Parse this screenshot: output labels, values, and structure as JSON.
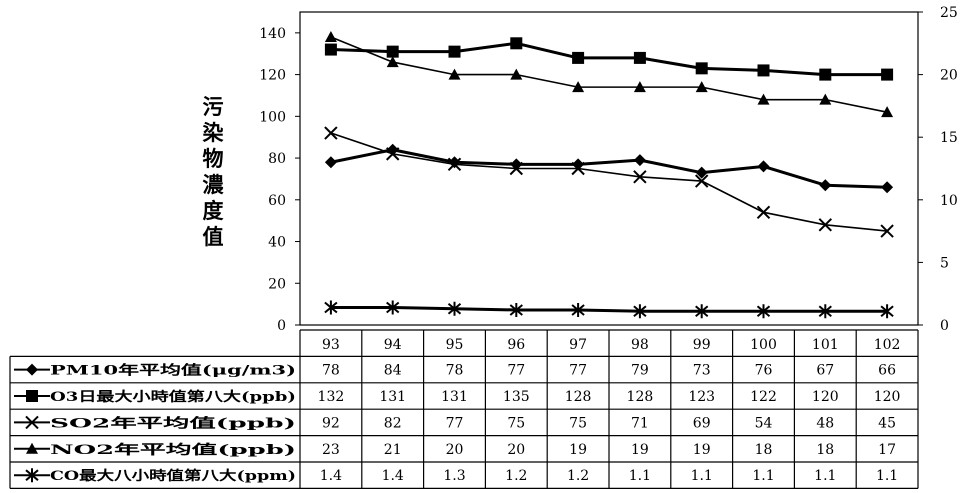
{
  "chart_data": {
    "type": "line",
    "ylabel": "污染物濃度值",
    "x": [
      "93",
      "94",
      "95",
      "96",
      "97",
      "98",
      "99",
      "100",
      "101",
      "102"
    ],
    "y_left": {
      "ticks": [
        "0",
        "20",
        "40",
        "60",
        "80",
        "100",
        "120",
        "140"
      ],
      "ylim": [
        0,
        150
      ]
    },
    "y_right": {
      "ticks": [
        "0",
        "5",
        "10",
        "15",
        "20",
        "25"
      ],
      "ylim": [
        0,
        25
      ]
    },
    "grid": false,
    "legend": "table-bottom",
    "series": [
      {
        "name": "PM10年平均值(μg/m3)",
        "marker": "diamond",
        "axis": "left",
        "values": [
          78,
          84,
          78,
          77,
          77,
          79,
          73,
          76,
          67,
          66
        ],
        "labels": [
          "78",
          "84",
          "78",
          "77",
          "77",
          "79",
          "73",
          "76",
          "67",
          "66"
        ]
      },
      {
        "name": "O3日最大小時值第八大(ppb)",
        "marker": "square",
        "axis": "left",
        "values": [
          132,
          131,
          131,
          135,
          128,
          128,
          123,
          122,
          120,
          120
        ],
        "labels": [
          "132",
          "131",
          "131",
          "135",
          "128",
          "128",
          "123",
          "122",
          "120",
          "120"
        ]
      },
      {
        "name": "SO2年平均值(ppb)",
        "marker": "x",
        "axis": "left",
        "values": [
          92,
          82,
          77,
          75,
          75,
          71,
          69,
          54,
          48,
          45
        ],
        "labels": [
          "92",
          "82",
          "77",
          "75",
          "75",
          "71",
          "69",
          "54",
          "48",
          "45"
        ]
      },
      {
        "name": "NO2年平均值(ppb)",
        "marker": "triangle",
        "axis": "right",
        "values": [
          23,
          21,
          20,
          20,
          19,
          19,
          19,
          18,
          18,
          17
        ],
        "labels": [
          "23",
          "21",
          "20",
          "20",
          "19",
          "19",
          "19",
          "18",
          "18",
          "17"
        ]
      },
      {
        "name": "CO最大八小時值第八大(ppm)",
        "marker": "star",
        "axis": "right",
        "values": [
          1.4,
          1.4,
          1.3,
          1.2,
          1.2,
          1.1,
          1.1,
          1.1,
          1.1,
          1.1
        ],
        "labels": [
          "1.4",
          "1.4",
          "1.3",
          "1.2",
          "1.2",
          "1.1",
          "1.1",
          "1.1",
          "1.1",
          "1.1"
        ]
      }
    ]
  }
}
